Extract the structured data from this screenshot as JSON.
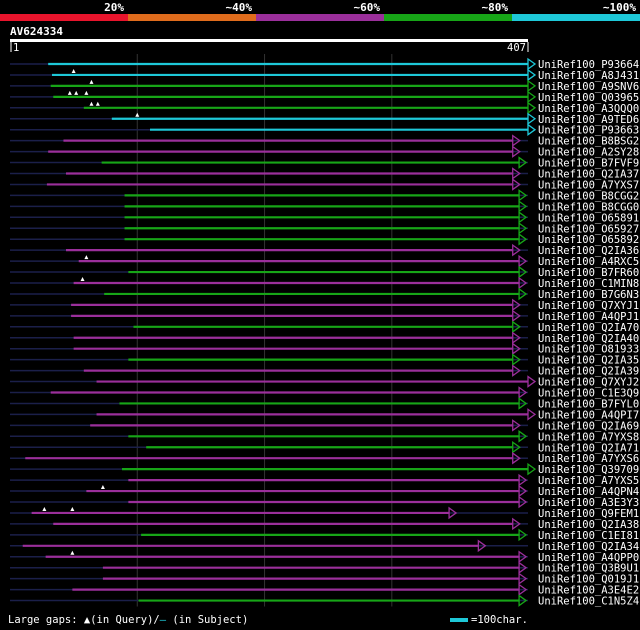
{
  "chart_data": {
    "type": "alignment-hits",
    "query_name": "AV624334",
    "query_length_start": "1",
    "query_length_end": "407",
    "query_max": 407,
    "identity_legend": [
      {
        "label": "20%",
        "color": "#e8142c"
      },
      {
        "label": "~40%",
        "color": "#e06c1c"
      },
      {
        "label": "~60%",
        "color": "#9b2f9b"
      },
      {
        "label": "~80%",
        "color": "#17a517"
      },
      {
        "label": "~100%",
        "color": "#1ec8d8"
      }
    ],
    "hits": [
      {
        "name": "UniRef100_P93664",
        "start": 30,
        "end": 407,
        "color": "#1ec8d8",
        "arrow": true,
        "gaps": []
      },
      {
        "name": "UniRef100_A8J431",
        "start": 33,
        "end": 407,
        "color": "#1ec8d8",
        "arrow": true,
        "gaps": [
          50
        ]
      },
      {
        "name": "UniRef100_A9SNV6",
        "start": 32,
        "end": 407,
        "color": "#17a517",
        "arrow": true,
        "gaps": [
          64
        ]
      },
      {
        "name": "UniRef100_Q03965",
        "start": 34,
        "end": 407,
        "color": "#17a517",
        "arrow": true,
        "gaps": [
          47,
          52,
          60
        ]
      },
      {
        "name": "UniRef100_A3QQQ0",
        "start": 58,
        "end": 407,
        "color": "#17a517",
        "arrow": true,
        "gaps": [
          64,
          69
        ]
      },
      {
        "name": "UniRef100_A9TED6",
        "start": 80,
        "end": 407,
        "color": "#1ec8d8",
        "arrow": true,
        "gaps": [
          100
        ]
      },
      {
        "name": "UniRef100_P93663",
        "start": 110,
        "end": 407,
        "color": "#1ec8d8",
        "arrow": true,
        "gaps": []
      },
      {
        "name": "UniRef100_B8BSG2",
        "start": 42,
        "end": 395,
        "color": "#9b2f9b",
        "arrow": true,
        "gaps": []
      },
      {
        "name": "UniRef100_A2SY28",
        "start": 30,
        "end": 395,
        "color": "#9b2f9b",
        "arrow": true,
        "gaps": []
      },
      {
        "name": "UniRef100_B7FVF9",
        "start": 72,
        "end": 400,
        "color": "#17a517",
        "arrow": true,
        "gaps": []
      },
      {
        "name": "UniRef100_Q2IA37",
        "start": 44,
        "end": 395,
        "color": "#9b2f9b",
        "arrow": true,
        "gaps": []
      },
      {
        "name": "UniRef100_A7YXS7",
        "start": 29,
        "end": 395,
        "color": "#9b2f9b",
        "arrow": true,
        "gaps": []
      },
      {
        "name": "UniRef100_B8CGG2",
        "start": 90,
        "end": 400,
        "color": "#17a517",
        "arrow": true,
        "gaps": []
      },
      {
        "name": "UniRef100_B8CGG0",
        "start": 90,
        "end": 400,
        "color": "#17a517",
        "arrow": true,
        "gaps": []
      },
      {
        "name": "UniRef100_O65891",
        "start": 90,
        "end": 400,
        "color": "#17a517",
        "arrow": true,
        "gaps": []
      },
      {
        "name": "UniRef100_O65927",
        "start": 90,
        "end": 400,
        "color": "#17a517",
        "arrow": true,
        "gaps": []
      },
      {
        "name": "UniRef100_O65892",
        "start": 90,
        "end": 400,
        "color": "#17a517",
        "arrow": true,
        "gaps": []
      },
      {
        "name": "UniRef100_Q2IA36",
        "start": 44,
        "end": 395,
        "color": "#9b2f9b",
        "arrow": true,
        "gaps": []
      },
      {
        "name": "UniRef100_A4RXC5",
        "start": 54,
        "end": 400,
        "color": "#9b2f9b",
        "arrow": true,
        "gaps": [
          60
        ]
      },
      {
        "name": "UniRef100_B7FR60",
        "start": 93,
        "end": 400,
        "color": "#17a517",
        "arrow": true,
        "gaps": []
      },
      {
        "name": "UniRef100_C1MIN8",
        "start": 50,
        "end": 400,
        "color": "#9b2f9b",
        "arrow": true,
        "gaps": [
          57
        ]
      },
      {
        "name": "UniRef100_B7G6N3",
        "start": 74,
        "end": 400,
        "color": "#17a517",
        "arrow": true,
        "gaps": []
      },
      {
        "name": "UniRef100_Q7XYJ1",
        "start": 48,
        "end": 395,
        "color": "#9b2f9b",
        "arrow": true,
        "gaps": []
      },
      {
        "name": "UniRef100_A4QPJ1",
        "start": 48,
        "end": 395,
        "color": "#9b2f9b",
        "arrow": true,
        "gaps": []
      },
      {
        "name": "UniRef100_Q2IA70",
        "start": 97,
        "end": 395,
        "color": "#17a517",
        "arrow": true,
        "gaps": []
      },
      {
        "name": "UniRef100_Q2IA40",
        "start": 50,
        "end": 395,
        "color": "#9b2f9b",
        "arrow": true,
        "gaps": []
      },
      {
        "name": "UniRef100_O81933",
        "start": 50,
        "end": 395,
        "color": "#9b2f9b",
        "arrow": true,
        "gaps": []
      },
      {
        "name": "UniRef100_Q2IA35",
        "start": 93,
        "end": 395,
        "color": "#17a517",
        "arrow": true,
        "gaps": []
      },
      {
        "name": "UniRef100_Q2IA39",
        "start": 58,
        "end": 395,
        "color": "#9b2f9b",
        "arrow": true,
        "gaps": []
      },
      {
        "name": "UniRef100_Q7XYJ2",
        "start": 68,
        "end": 407,
        "color": "#9b2f9b",
        "arrow": true,
        "gaps": []
      },
      {
        "name": "UniRef100_C1E3Q9",
        "start": 32,
        "end": 400,
        "color": "#9b2f9b",
        "arrow": true,
        "gaps": []
      },
      {
        "name": "UniRef100_B7FYL0",
        "start": 86,
        "end": 400,
        "color": "#17a517",
        "arrow": true,
        "gaps": []
      },
      {
        "name": "UniRef100_A4QPI7",
        "start": 68,
        "end": 407,
        "color": "#9b2f9b",
        "arrow": true,
        "gaps": []
      },
      {
        "name": "UniRef100_Q2IA69",
        "start": 63,
        "end": 395,
        "color": "#9b2f9b",
        "arrow": true,
        "gaps": []
      },
      {
        "name": "UniRef100_A7YXS8",
        "start": 93,
        "end": 400,
        "color": "#17a517",
        "arrow": true,
        "gaps": []
      },
      {
        "name": "UniRef100_Q2IA71",
        "start": 107,
        "end": 395,
        "color": "#17a517",
        "arrow": true,
        "gaps": []
      },
      {
        "name": "UniRef100_A7YXS6",
        "start": 12,
        "end": 395,
        "color": "#9b2f9b",
        "arrow": true,
        "gaps": []
      },
      {
        "name": "UniRef100_Q39709",
        "start": 88,
        "end": 407,
        "color": "#17a517",
        "arrow": true,
        "gaps": []
      },
      {
        "name": "UniRef100_A7YXS5",
        "start": 93,
        "end": 400,
        "color": "#9b2f9b",
        "arrow": true,
        "gaps": []
      },
      {
        "name": "UniRef100_A4QPN4",
        "start": 60,
        "end": 400,
        "color": "#9b2f9b",
        "arrow": true,
        "gaps": [
          73
        ]
      },
      {
        "name": "UniRef100_A3E3Y3",
        "start": 93,
        "end": 400,
        "color": "#9b2f9b",
        "arrow": true,
        "gaps": []
      },
      {
        "name": "UniRef100_Q9FEM1",
        "start": 17,
        "end": 345,
        "color": "#9b2f9b",
        "arrow": true,
        "gaps": [
          27,
          49
        ]
      },
      {
        "name": "UniRef100_Q2IA38",
        "start": 34,
        "end": 395,
        "color": "#9b2f9b",
        "arrow": true,
        "gaps": []
      },
      {
        "name": "UniRef100_C1EI81",
        "start": 103,
        "end": 400,
        "color": "#17a517",
        "arrow": true,
        "gaps": []
      },
      {
        "name": "UniRef100_Q2IA34",
        "start": 10,
        "end": 368,
        "color": "#9b2f9b",
        "arrow": true,
        "gaps": []
      },
      {
        "name": "UniRef100_A4QPP0",
        "start": 28,
        "end": 400,
        "color": "#9b2f9b",
        "arrow": true,
        "gaps": [
          49
        ]
      },
      {
        "name": "UniRef100_Q3B9U1",
        "start": 73,
        "end": 400,
        "color": "#9b2f9b",
        "arrow": true,
        "gaps": []
      },
      {
        "name": "UniRef100_Q019J1",
        "start": 73,
        "end": 400,
        "color": "#9b2f9b",
        "arrow": true,
        "gaps": []
      },
      {
        "name": "UniRef100_A3E4E2",
        "start": 49,
        "end": 400,
        "color": "#9b2f9b",
        "arrow": true,
        "gaps": []
      },
      {
        "name": "UniRef100_C1N5Z4",
        "start": 101,
        "end": 400,
        "color": "#17a517",
        "arrow": true,
        "gaps": []
      }
    ]
  },
  "footer": {
    "gaps_label": "Large gaps:",
    "in_query": "(in Query)/",
    "in_subject": "(in Subject)",
    "scale": "=100char."
  }
}
